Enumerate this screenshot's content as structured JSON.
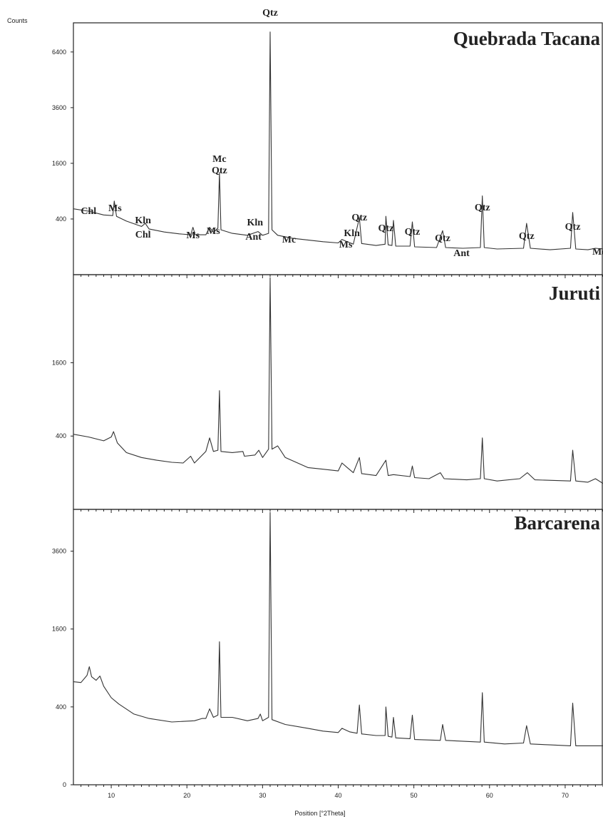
{
  "chart_data": {
    "type": "line",
    "y_axis_title": "Counts",
    "x_axis_title": "Position [°2Theta]",
    "x_range": [
      5,
      75
    ],
    "x_ticks": [
      10,
      20,
      30,
      40,
      50,
      60,
      70
    ],
    "y_scale": "sqrt",
    "panels": [
      {
        "title": "Quebrada Tacana",
        "ylim": [
          0,
          8000
        ],
        "y_ticks": [
          400,
          1600,
          3600,
          6400
        ],
        "points": [
          [
            5,
            560
          ],
          [
            7,
            520
          ],
          [
            9,
            460
          ],
          [
            10.2,
            450
          ],
          [
            10.4,
            700
          ],
          [
            10.7,
            440
          ],
          [
            12,
            370
          ],
          [
            14,
            300
          ],
          [
            14.5,
            340
          ],
          [
            15,
            270
          ],
          [
            17,
            235
          ],
          [
            19,
            215
          ],
          [
            20.5,
            205
          ],
          [
            20.8,
            290
          ],
          [
            21.1,
            205
          ],
          [
            22.5,
            205
          ],
          [
            23,
            290
          ],
          [
            23.5,
            230
          ],
          [
            24.1,
            280
          ],
          [
            24.3,
            1350
          ],
          [
            24.5,
            260
          ],
          [
            26,
            220
          ],
          [
            28,
            200
          ],
          [
            29.4,
            240
          ],
          [
            30,
            200
          ],
          [
            30.8,
            220
          ],
          [
            31.0,
            7600
          ],
          [
            31.25,
            260
          ],
          [
            32,
            200
          ],
          [
            34,
            170
          ],
          [
            36,
            155
          ],
          [
            38,
            140
          ],
          [
            40,
            130
          ],
          [
            40.5,
            160
          ],
          [
            41,
            145
          ],
          [
            42,
            120
          ],
          [
            42.8,
            420
          ],
          [
            43.1,
            125
          ],
          [
            45,
            110
          ],
          [
            46.2,
            120
          ],
          [
            46.3,
            440
          ],
          [
            46.6,
            115
          ],
          [
            47.1,
            110
          ],
          [
            47.3,
            380
          ],
          [
            47.6,
            105
          ],
          [
            49.5,
            105
          ],
          [
            49.8,
            360
          ],
          [
            50.1,
            100
          ],
          [
            53,
            95
          ],
          [
            53.8,
            250
          ],
          [
            54.2,
            95
          ],
          [
            56.5,
            90
          ],
          [
            58.8,
            95
          ],
          [
            59.05,
            800
          ],
          [
            59.3,
            95
          ],
          [
            61,
            85
          ],
          [
            64.5,
            90
          ],
          [
            64.9,
            340
          ],
          [
            65.4,
            90
          ],
          [
            68,
            80
          ],
          [
            70.7,
            90
          ],
          [
            71.0,
            500
          ],
          [
            71.4,
            85
          ],
          [
            73,
            80
          ],
          [
            74,
            90
          ],
          [
            75,
            85
          ]
        ]
      },
      {
        "title": "Juruti",
        "ylim": [
          0,
          4000
        ],
        "y_ticks": [
          400,
          1600
        ],
        "points": [
          [
            5,
            420
          ],
          [
            7,
            390
          ],
          [
            9,
            350
          ],
          [
            10,
            390
          ],
          [
            10.3,
            450
          ],
          [
            10.8,
            330
          ],
          [
            12,
            240
          ],
          [
            14,
            200
          ],
          [
            16,
            180
          ],
          [
            18,
            165
          ],
          [
            19.5,
            160
          ],
          [
            20.5,
            210
          ],
          [
            21,
            160
          ],
          [
            22.5,
            250
          ],
          [
            23,
            380
          ],
          [
            23.5,
            250
          ],
          [
            24.1,
            260
          ],
          [
            24.3,
            1050
          ],
          [
            24.5,
            250
          ],
          [
            26,
            240
          ],
          [
            27.4,
            250
          ],
          [
            27.6,
            210
          ],
          [
            29,
            220
          ],
          [
            29.5,
            260
          ],
          [
            30,
            200
          ],
          [
            30.8,
            270
          ],
          [
            31.0,
            4000
          ],
          [
            31.25,
            270
          ],
          [
            32,
            300
          ],
          [
            33,
            200
          ],
          [
            36,
            130
          ],
          [
            38,
            120
          ],
          [
            40,
            110
          ],
          [
            40.5,
            160
          ],
          [
            41.2,
            130
          ],
          [
            42,
            100
          ],
          [
            42.8,
            200
          ],
          [
            43.1,
            95
          ],
          [
            45,
            85
          ],
          [
            46.3,
            180
          ],
          [
            46.6,
            85
          ],
          [
            47.3,
            90
          ],
          [
            49.5,
            80
          ],
          [
            49.8,
            140
          ],
          [
            50.1,
            75
          ],
          [
            52,
            70
          ],
          [
            53.5,
            100
          ],
          [
            54,
            70
          ],
          [
            57,
            65
          ],
          [
            58.8,
            70
          ],
          [
            59.05,
            380
          ],
          [
            59.3,
            70
          ],
          [
            61,
            60
          ],
          [
            64,
            70
          ],
          [
            65,
            100
          ],
          [
            66,
            65
          ],
          [
            70.7,
            60
          ],
          [
            71.0,
            260
          ],
          [
            71.4,
            60
          ],
          [
            73,
            55
          ],
          [
            74,
            70
          ],
          [
            75,
            50
          ]
        ]
      },
      {
        "title": "Barcarena",
        "ylim": [
          0,
          4900
        ],
        "y_ticks": [
          0,
          400,
          1600,
          3600
        ],
        "points": [
          [
            5,
            700
          ],
          [
            6,
            690
          ],
          [
            6.8,
            790
          ],
          [
            7.1,
            920
          ],
          [
            7.4,
            770
          ],
          [
            8,
            720
          ],
          [
            8.5,
            780
          ],
          [
            9,
            640
          ],
          [
            10,
            500
          ],
          [
            11,
            430
          ],
          [
            13,
            330
          ],
          [
            15,
            290
          ],
          [
            18,
            260
          ],
          [
            21,
            270
          ],
          [
            22,
            290
          ],
          [
            22.5,
            290
          ],
          [
            23,
            380
          ],
          [
            23.5,
            300
          ],
          [
            24.1,
            320
          ],
          [
            24.3,
            1350
          ],
          [
            24.5,
            300
          ],
          [
            26,
            300
          ],
          [
            28,
            270
          ],
          [
            29.4,
            290
          ],
          [
            29.7,
            330
          ],
          [
            30,
            270
          ],
          [
            30.8,
            300
          ],
          [
            31.0,
            4900
          ],
          [
            31.25,
            280
          ],
          [
            33,
            240
          ],
          [
            36,
            210
          ],
          [
            38,
            190
          ],
          [
            40,
            180
          ],
          [
            40.5,
            210
          ],
          [
            41.5,
            185
          ],
          [
            42.5,
            175
          ],
          [
            42.8,
            420
          ],
          [
            43.1,
            170
          ],
          [
            45,
            160
          ],
          [
            46.2,
            160
          ],
          [
            46.3,
            400
          ],
          [
            46.6,
            155
          ],
          [
            47.1,
            150
          ],
          [
            47.3,
            300
          ],
          [
            47.6,
            145
          ],
          [
            49.5,
            140
          ],
          [
            49.8,
            320
          ],
          [
            50.1,
            135
          ],
          [
            53.5,
            130
          ],
          [
            53.8,
            240
          ],
          [
            54.2,
            130
          ],
          [
            58.8,
            120
          ],
          [
            59.05,
            560
          ],
          [
            59.3,
            120
          ],
          [
            62,
            110
          ],
          [
            64.5,
            115
          ],
          [
            64.9,
            230
          ],
          [
            65.4,
            110
          ],
          [
            68,
            105
          ],
          [
            70.7,
            100
          ],
          [
            71.0,
            440
          ],
          [
            71.4,
            100
          ],
          [
            73,
            100
          ],
          [
            75,
            100
          ]
        ]
      }
    ],
    "annotations": [
      {
        "panel": 0,
        "text": "Qtz",
        "x": 31.0
      },
      {
        "panel": 0,
        "text": "Chl",
        "x": 7
      },
      {
        "panel": 0,
        "text": "Ms",
        "x": 10.5
      },
      {
        "panel": 0,
        "text": "Kln",
        "x": 14.2
      },
      {
        "panel": 0,
        "text": "Chl",
        "x": 14.2
      },
      {
        "panel": 0,
        "text": "Ms",
        "x": 20.8
      },
      {
        "panel": 0,
        "text": "Ms",
        "x": 23.5
      },
      {
        "panel": 0,
        "text": "Mc",
        "x": 24.3
      },
      {
        "panel": 0,
        "text": "Qtz",
        "x": 24.3
      },
      {
        "panel": 0,
        "text": "Kln",
        "x": 29.0
      },
      {
        "panel": 0,
        "text": "Ant",
        "x": 28.8
      },
      {
        "panel": 0,
        "text": "Mc",
        "x": 33.5
      },
      {
        "panel": 0,
        "text": "Qtz",
        "x": 42.8
      },
      {
        "panel": 0,
        "text": "Kln",
        "x": 41.8
      },
      {
        "panel": 0,
        "text": "Ms",
        "x": 41.0
      },
      {
        "panel": 0,
        "text": "Qtz",
        "x": 46.3
      },
      {
        "panel": 0,
        "text": "Qtz",
        "x": 49.8
      },
      {
        "panel": 0,
        "text": "Qtz",
        "x": 53.8
      },
      {
        "panel": 0,
        "text": "Ant",
        "x": 56.3
      },
      {
        "panel": 0,
        "text": "Qtz",
        "x": 59.05
      },
      {
        "panel": 0,
        "text": "Qtz",
        "x": 64.9
      },
      {
        "panel": 0,
        "text": "Qtz",
        "x": 71.0
      },
      {
        "panel": 0,
        "text": "Mc",
        "x": 74.5
      }
    ]
  }
}
